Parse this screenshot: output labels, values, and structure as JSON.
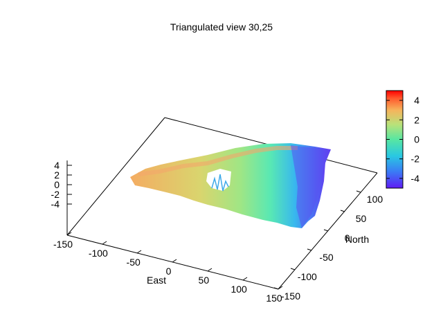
{
  "chart_data": {
    "type": "surface3d",
    "title": "Triangulated view 30,25",
    "view": {
      "rot_x": 30,
      "rot_z": 25
    },
    "xlabel": "East",
    "ylabel": "North",
    "zlabel": "",
    "xlim": [
      -150,
      150
    ],
    "ylim": [
      -150,
      150
    ],
    "zlim": [
      -5,
      5
    ],
    "x_ticks": [
      "-150",
      "-100",
      "-50",
      "0",
      "50",
      "100",
      "150"
    ],
    "y_ticks": [
      "-150",
      "-100",
      "-50",
      "0",
      "50",
      "100"
    ],
    "z_ticks": [
      "4",
      "2",
      "0",
      "-2",
      "-4"
    ],
    "colorbar": {
      "range": [
        -5,
        5
      ],
      "ticks": [
        "4",
        "2",
        "0",
        "-2",
        "-4"
      ],
      "palette": [
        "#5f2cf2",
        "#3a7cf5",
        "#29c8e2",
        "#58e6a2",
        "#b3e374",
        "#f6b45c",
        "#ff5a2e",
        "#ff0000"
      ]
    },
    "surface": {
      "description": "terrain-like triangulated surface, warm (positive) to the west, cool (negative) to the east, with a hole near the center-west",
      "height_range": [
        -5,
        4
      ]
    }
  }
}
